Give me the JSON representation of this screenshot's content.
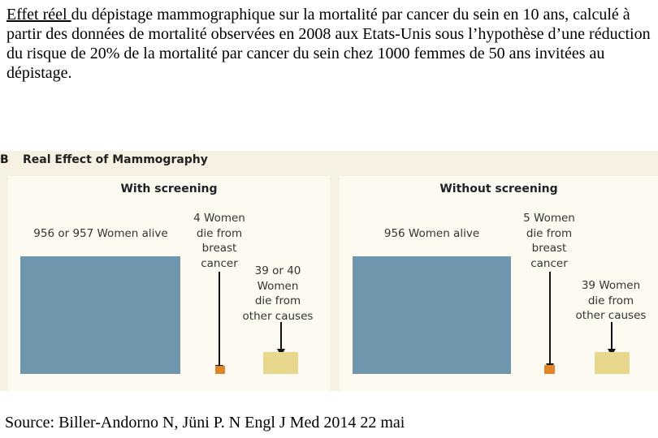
{
  "caption": {
    "underlined": "Effet réel ",
    "rest": "du dépistage mammographique sur la mortalité par cancer du sein en 10 ans, calculé à partir des données de mortalité observées en 2008 aux Etats-Unis sous l’hypothèse d’une réduction du risque de 20% de la mortalité par cancer du sein chez 1000 femmes de 50 ans invitées au dépistage."
  },
  "figure": {
    "label": "B",
    "title": "Real Effect of Mammography"
  },
  "colors": {
    "alive": "#6e97ad",
    "breast_cancer": "#e08628",
    "other_causes": "#e8d88e"
  },
  "chart_data": {
    "type": "bar",
    "title": "Real Effect of Mammography",
    "categories": [
      "Women alive",
      "Women die from breast cancer",
      "Women die from other causes"
    ],
    "panels": [
      {
        "title": "With screening",
        "values": [
          956.5,
          4,
          39.5
        ],
        "labels": [
          "956 or 957 Women alive",
          "4 Women die from breast cancer",
          "39 or 40 Women die from other causes"
        ]
      },
      {
        "title": "Without screening",
        "values": [
          956,
          5,
          39
        ],
        "labels": [
          "956 Women alive",
          "5 Women die from breast cancer",
          "39 Women die from other causes"
        ]
      }
    ]
  },
  "source": "Source: Biller-Andorno N, Jüni P. N Engl J Med 2014 22 mai"
}
